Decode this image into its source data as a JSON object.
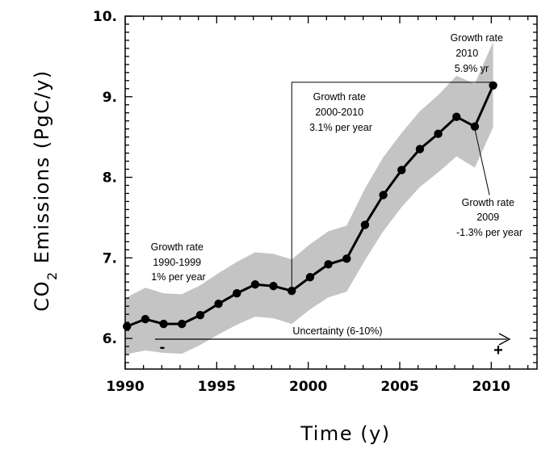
{
  "chart_data": {
    "type": "line",
    "title": "",
    "xlabel": "Time (y)",
    "ylabel_main": "CO",
    "ylabel_sub": "2",
    "ylabel_rest": " Emissions (PgC/y)",
    "xlim": [
      1990,
      2012.5
    ],
    "ylim": [
      5.62,
      10.0
    ],
    "xticks": [
      1990,
      1995,
      2000,
      2005,
      2010
    ],
    "xtick_labels": [
      "1990",
      "1995",
      "2000",
      "2005",
      "2010"
    ],
    "yticks": [
      6,
      7,
      8,
      9,
      10
    ],
    "ytick_labels": [
      "6.",
      "7.",
      "8.",
      "9.",
      "10."
    ],
    "series": [
      {
        "name": "CO2 emissions",
        "x": [
          1990.1,
          1991.1,
          1992.1,
          1993.1,
          1994.1,
          1995.1,
          1996.1,
          1997.1,
          1998.1,
          1999.1,
          2000.1,
          2001.1,
          2002.1,
          2003.1,
          2004.1,
          2005.1,
          2006.1,
          2007.1,
          2008.1,
          2009.1,
          2010.1
        ],
        "y": [
          6.15,
          6.24,
          6.18,
          6.18,
          6.29,
          6.43,
          6.56,
          6.67,
          6.65,
          6.59,
          6.76,
          6.92,
          6.99,
          7.41,
          7.78,
          8.09,
          8.35,
          8.54,
          8.75,
          8.63,
          9.14
        ]
      }
    ],
    "uncertainty_band": {
      "label": "Uncertainty (6-10%)",
      "x": [
        1990.0,
        1991.1,
        1992.1,
        1993.1,
        1994.1,
        1995.1,
        1996.1,
        1997.1,
        1998.1,
        1999.1,
        2000.1,
        2001.1,
        2002.1,
        2003.1,
        2004.1,
        2005.1,
        2006.1,
        2007.1,
        2008.1,
        2009.1,
        2010.1
      ],
      "lower": [
        5.8,
        5.85,
        5.82,
        5.81,
        5.92,
        6.05,
        6.17,
        6.27,
        6.25,
        6.18,
        6.36,
        6.51,
        6.58,
        6.97,
        7.33,
        7.63,
        7.88,
        8.06,
        8.26,
        8.12,
        8.62
      ],
      "upper": [
        6.5,
        6.63,
        6.56,
        6.55,
        6.66,
        6.81,
        6.95,
        7.07,
        7.05,
        6.98,
        7.17,
        7.33,
        7.4,
        7.86,
        8.25,
        8.55,
        8.82,
        9.02,
        9.26,
        9.16,
        9.68
      ]
    },
    "annotations": [
      {
        "name": "growth-rate-1990s",
        "lines": [
          "Growth rate",
          "1990-1999",
          "1% per year"
        ]
      },
      {
        "name": "growth-rate-2000s",
        "lines": [
          "Growth rate",
          "2000-2010",
          "3.1% per year"
        ]
      },
      {
        "name": "growth-rate-2010",
        "lines": [
          "Growth rate",
          "2010",
          "5.9% yr"
        ]
      },
      {
        "name": "growth-rate-2009",
        "lines": [
          "Growth rate",
          "2009",
          "-1.3% per year"
        ]
      }
    ],
    "uncertainty_arrow": {
      "label": "Uncertainty (6-10%)",
      "minus": "-",
      "plus": "+"
    },
    "colors": {
      "band": "#c4c4c4",
      "line": "#000000",
      "marker": "#000000"
    }
  }
}
